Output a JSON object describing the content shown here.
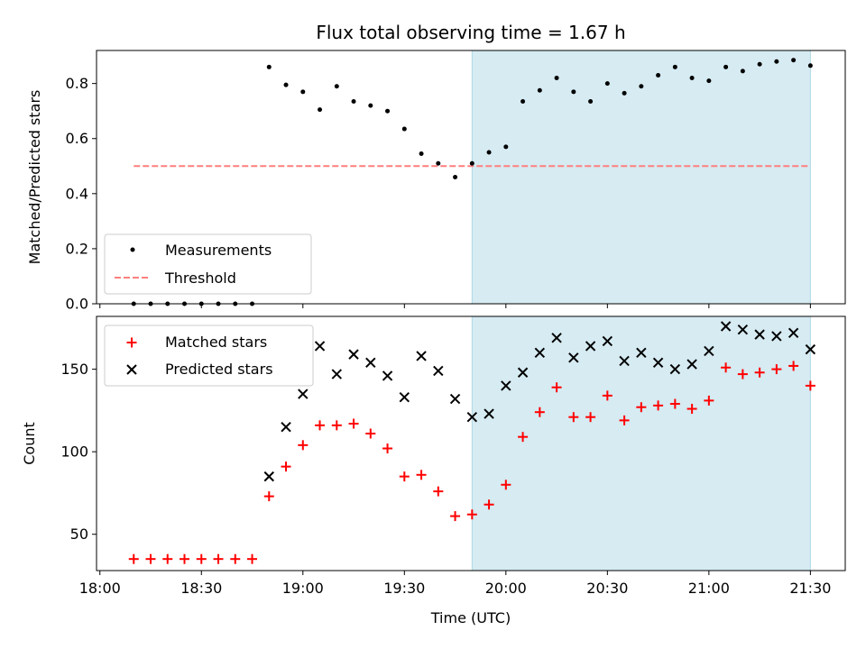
{
  "chart_data": [
    {
      "type": "scatter",
      "title": "Flux total observing time = 1.67 h",
      "ylabel": "Matched/Predicted stars",
      "xlabel": "",
      "ylim": [
        0,
        0.92
      ],
      "y_ticks": [
        "0.0",
        "0.2",
        "0.4",
        "0.6",
        "0.8"
      ],
      "y_tick_values": [
        0,
        0.2,
        0.4,
        0.6,
        0.8
      ],
      "highlight_span": [
        "19:50",
        "21:30"
      ],
      "highlight_color": "#add8e6",
      "legend_position": "lower-left",
      "series": [
        {
          "name": "Measurements",
          "color": "#000000",
          "marker": "dot",
          "x": [
            "18:10",
            "18:15",
            "18:20",
            "18:25",
            "18:30",
            "18:35",
            "18:40",
            "18:45",
            "18:50",
            "18:55",
            "19:00",
            "19:05",
            "19:10",
            "19:15",
            "19:20",
            "19:25",
            "19:30",
            "19:35",
            "19:40",
            "19:45",
            "19:50",
            "19:55",
            "20:00",
            "20:05",
            "20:10",
            "20:15",
            "20:20",
            "20:25",
            "20:30",
            "20:35",
            "20:40",
            "20:45",
            "20:50",
            "20:55",
            "21:00",
            "21:05",
            "21:10",
            "21:15",
            "21:20",
            "21:25",
            "21:30"
          ],
          "y": [
            0,
            0,
            0,
            0,
            0,
            0,
            0,
            0,
            0.86,
            0.795,
            0.77,
            0.705,
            0.79,
            0.735,
            0.72,
            0.7,
            0.635,
            0.545,
            0.51,
            0.46,
            0.51,
            0.55,
            0.57,
            0.735,
            0.775,
            0.82,
            0.77,
            0.735,
            0.8,
            0.765,
            0.79,
            0.83,
            0.86,
            0.82,
            0.81,
            0.86,
            0.845,
            0.87,
            0.88,
            0.885,
            0.865
          ]
        },
        {
          "name": "Threshold",
          "color": "#ff7f7f",
          "style": "dashed",
          "x": [
            "18:10",
            "21:30"
          ],
          "y": [
            0.5,
            0.5
          ]
        }
      ]
    },
    {
      "type": "scatter",
      "title": "",
      "ylabel": "Count",
      "xlabel": "Time (UTC)",
      "ylim": [
        28,
        182
      ],
      "y_ticks": [
        "50",
        "100",
        "150"
      ],
      "y_tick_values": [
        50,
        100,
        150
      ],
      "x_ticks": [
        "18:00",
        "18:30",
        "19:00",
        "19:30",
        "20:00",
        "20:30",
        "21:00",
        "21:30"
      ],
      "highlight_span": [
        "19:50",
        "21:30"
      ],
      "highlight_color": "#add8e6",
      "legend_position": "upper-left",
      "series": [
        {
          "name": "Matched stars",
          "color": "#ff0000",
          "marker": "plus",
          "x": [
            "18:10",
            "18:15",
            "18:20",
            "18:25",
            "18:30",
            "18:35",
            "18:40",
            "18:45",
            "18:50",
            "18:55",
            "19:00",
            "19:05",
            "19:10",
            "19:15",
            "19:20",
            "19:25",
            "19:30",
            "19:35",
            "19:40",
            "19:45",
            "19:50",
            "19:55",
            "20:00",
            "20:05",
            "20:10",
            "20:15",
            "20:20",
            "20:25",
            "20:30",
            "20:35",
            "20:40",
            "20:45",
            "20:50",
            "20:55",
            "21:00",
            "21:05",
            "21:10",
            "21:15",
            "21:20",
            "21:25",
            "21:30"
          ],
          "y": [
            35,
            35,
            35,
            35,
            35,
            35,
            35,
            35,
            73,
            91,
            104,
            116,
            116,
            117,
            111,
            102,
            85,
            86,
            76,
            61,
            62,
            68,
            80,
            109,
            124,
            139,
            121,
            121,
            134,
            119,
            127,
            128,
            129,
            126,
            131,
            151,
            147,
            148,
            150,
            152,
            140
          ]
        },
        {
          "name": "Predicted stars",
          "color": "#000000",
          "marker": "x",
          "x": [
            "18:50",
            "18:55",
            "19:00",
            "19:05",
            "19:10",
            "19:15",
            "19:20",
            "19:25",
            "19:30",
            "19:35",
            "19:40",
            "19:45",
            "19:50",
            "19:55",
            "20:00",
            "20:05",
            "20:10",
            "20:15",
            "20:20",
            "20:25",
            "20:30",
            "20:35",
            "20:40",
            "20:45",
            "20:50",
            "20:55",
            "21:00",
            "21:05",
            "21:10",
            "21:15",
            "21:20",
            "21:25",
            "21:30"
          ],
          "y": [
            85,
            115,
            135,
            164,
            147,
            159,
            154,
            146,
            133,
            158,
            149,
            132,
            121,
            123,
            140,
            148,
            160,
            169,
            157,
            164,
            167,
            155,
            160,
            154,
            150,
            153,
            161,
            176,
            174,
            171,
            170,
            172,
            162
          ]
        }
      ]
    }
  ]
}
